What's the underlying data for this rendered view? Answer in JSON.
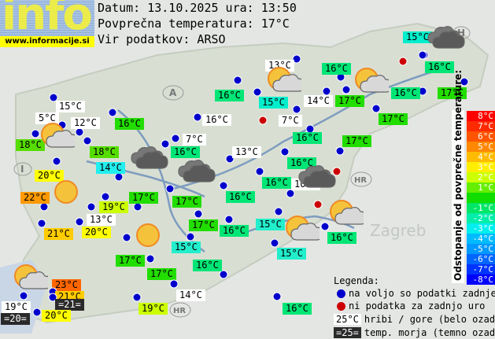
{
  "logo": {
    "text": "info",
    "url": "www.informacije.si"
  },
  "header": {
    "date_line": "Datum: 13.10.2025 ura: 13:50",
    "avg_line": "Povprečna temperatura: 17°C",
    "source_line": "Vir podatkov: ARSO"
  },
  "map_labels": [
    "A",
    "H",
    "I",
    "HR",
    "HR",
    "Zagreb"
  ],
  "stations": [
    {
      "temp": "15°C",
      "bg": "#00eecc",
      "type": "valley",
      "status": "ok"
    },
    {
      "temp": "16°C",
      "bg": "#00e676",
      "type": "valley",
      "status": "ok"
    },
    {
      "temp": "13°C",
      "bg": "#ffffff",
      "type": "mountain",
      "status": "ok"
    },
    {
      "temp": "16°C",
      "bg": "#00e676",
      "type": "valley",
      "status": "ok"
    },
    {
      "temp": "16°C",
      "bg": "#00e676",
      "type": "valley",
      "status": "ok"
    },
    {
      "temp": "17°C",
      "bg": "#22dd00",
      "type": "valley",
      "status": "ok"
    },
    {
      "temp": "16°C",
      "bg": "#00e676",
      "type": "valley",
      "status": "ok"
    },
    {
      "temp": "15°C",
      "bg": "#00eecc",
      "type": "valley",
      "status": "ok"
    },
    {
      "temp": "14°C",
      "bg": "#ffffff",
      "type": "mountain",
      "status": "ok"
    },
    {
      "temp": "17°C",
      "bg": "#22dd00",
      "type": "valley",
      "status": "ok"
    },
    {
      "temp": "17°C",
      "bg": "#22dd00",
      "type": "valley",
      "status": "ok"
    },
    {
      "temp": "7°C",
      "bg": "#ffffff",
      "type": "mountain",
      "status": "ok"
    },
    {
      "temp": "16°C",
      "bg": "#00e676",
      "type": "valley",
      "status": "ok"
    },
    {
      "temp": "17°C",
      "bg": "#22dd00",
      "type": "valley",
      "status": "ok"
    },
    {
      "temp": "13°C",
      "bg": "#ffffff",
      "type": "mountain",
      "status": "ok"
    },
    {
      "temp": "16°C",
      "bg": "#00e676",
      "type": "valley",
      "status": "ok"
    },
    {
      "temp": "16°C",
      "bg": "#00e676",
      "type": "valley",
      "status": "ok"
    },
    {
      "temp": "10°C",
      "bg": "#ffffff",
      "type": "mountain",
      "status": "ok"
    },
    {
      "temp": "15°C",
      "bg": "#ffffff",
      "type": "mountain",
      "status": "ok"
    },
    {
      "temp": "5°C",
      "bg": "#ffffff",
      "type": "mountain",
      "status": "ok"
    },
    {
      "temp": "12°C",
      "bg": "#ffffff",
      "type": "mountain",
      "status": "ok"
    },
    {
      "temp": "18°C",
      "bg": "#55dd00",
      "type": "valley",
      "status": "ok"
    },
    {
      "temp": "16°C",
      "bg": "#22dd00",
      "type": "valley",
      "status": "ok"
    },
    {
      "temp": "16°C",
      "bg": "#ffffff",
      "type": "mountain",
      "status": "ok"
    },
    {
      "temp": "7°C",
      "bg": "#ffffff",
      "type": "mountain",
      "status": "ok"
    },
    {
      "temp": "16°C",
      "bg": "#00e676",
      "type": "valley",
      "status": "ok"
    },
    {
      "temp": "18°C",
      "bg": "#55dd00",
      "type": "valley",
      "status": "ok"
    },
    {
      "temp": "14°C",
      "bg": "#22eeee",
      "type": "valley",
      "status": "ok"
    },
    {
      "temp": "20°C",
      "bg": "#ffff00",
      "type": "valley",
      "status": "ok"
    },
    {
      "temp": "22°C",
      "bg": "#ff9900",
      "type": "valley",
      "status": "ok"
    },
    {
      "temp": "19°C",
      "bg": "#ccff00",
      "type": "valley",
      "status": "ok"
    },
    {
      "temp": "17°C",
      "bg": "#22dd00",
      "type": "valley",
      "status": "ok"
    },
    {
      "temp": "17°C",
      "bg": "#22dd00",
      "type": "valley",
      "status": "ok"
    },
    {
      "temp": "16°C",
      "bg": "#00e676",
      "type": "valley",
      "status": "ok"
    },
    {
      "temp": "13°C",
      "bg": "#ffffff",
      "type": "mountain",
      "status": "ok"
    },
    {
      "temp": "20°C",
      "bg": "#ffff00",
      "type": "valley",
      "status": "ok"
    },
    {
      "temp": "21°C",
      "bg": "#ffcc00",
      "type": "valley",
      "status": "ok"
    },
    {
      "temp": "17°C",
      "bg": "#22dd00",
      "type": "valley",
      "status": "ok"
    },
    {
      "temp": "16°C",
      "bg": "#00e676",
      "type": "valley",
      "status": "ok"
    },
    {
      "temp": "15°C",
      "bg": "#22eecc",
      "type": "valley",
      "status": "ok"
    },
    {
      "temp": "15°C",
      "bg": "#22eecc",
      "type": "valley",
      "status": "ok"
    },
    {
      "temp": "16°C",
      "bg": "#00e676",
      "type": "valley",
      "status": "ok"
    },
    {
      "temp": "17°C",
      "bg": "#22dd00",
      "type": "valley",
      "status": "ok"
    },
    {
      "temp": "17°C",
      "bg": "#22dd00",
      "type": "valley",
      "status": "ok"
    },
    {
      "temp": "23°C",
      "bg": "#ff6600",
      "type": "valley",
      "status": "ok"
    },
    {
      "temp": "21°C",
      "bg": "#ffcc00",
      "type": "valley",
      "status": "ok"
    },
    {
      "temp": "=21=",
      "bg": "#2a2a2a",
      "type": "sea",
      "status": "ok"
    },
    {
      "temp": "19°C",
      "bg": "#ffffff",
      "type": "mountain",
      "status": "ok"
    },
    {
      "temp": "=20=",
      "bg": "#2a2a2a",
      "type": "sea",
      "status": "ok"
    },
    {
      "temp": "20°C",
      "bg": "#ffff00",
      "type": "valley",
      "status": "ok"
    },
    {
      "temp": "19°C",
      "bg": "#ccff00",
      "type": "valley",
      "status": "ok"
    },
    {
      "temp": "14°C",
      "bg": "#ffffff",
      "type": "mountain",
      "status": "ok"
    },
    {
      "temp": "16°C",
      "bg": "#00e676",
      "type": "valley",
      "status": "ok"
    },
    {
      "temp": "16°C",
      "bg": "#00e676",
      "type": "valley",
      "status": "ok"
    },
    {
      "temp": "15°C",
      "bg": "#22eecc",
      "type": "valley",
      "status": "ok"
    },
    {
      "temp": "",
      "status": "no-data"
    },
    {
      "temp": "",
      "status": "no-data"
    },
    {
      "temp": "",
      "status": "no-data"
    },
    {
      "temp": "",
      "status": "no-data"
    },
    {
      "temp": "",
      "status": "no-data"
    }
  ],
  "weather_icons": [
    "cloud",
    "sun-cloud",
    "sun-cloud",
    "sun-cloud",
    "cloud",
    "cloud",
    "sun",
    "sun",
    "sun-cloud",
    "sun-cloud",
    "sun-cloud",
    "cloud"
  ],
  "scale": {
    "title": "Odstopanje od povprečne temperature:",
    "rows": [
      {
        "label": "8°C",
        "color": "#ff0000"
      },
      {
        "label": "7°C",
        "color": "#ff2a00"
      },
      {
        "label": "6°C",
        "color": "#ff5500"
      },
      {
        "label": "5°C",
        "color": "#ff8800"
      },
      {
        "label": "4°C",
        "color": "#ffbb00"
      },
      {
        "label": "3°C",
        "color": "#ffee00"
      },
      {
        "label": "2°C",
        "color": "#ccff00"
      },
      {
        "label": "1°C",
        "color": "#66ee00"
      },
      {
        "label": "",
        "color": "#11dd00"
      },
      {
        "label": "-1°C",
        "color": "#00e666"
      },
      {
        "label": "-2°C",
        "color": "#00eeaa"
      },
      {
        "label": "-3°C",
        "color": "#00eeee"
      },
      {
        "label": "-4°C",
        "color": "#00bbff"
      },
      {
        "label": "-5°C",
        "color": "#0099ff"
      },
      {
        "label": "-6°C",
        "color": "#0066ff"
      },
      {
        "label": "-7°C",
        "color": "#0033ff"
      },
      {
        "label": "-8°C",
        "color": "#0000ff"
      }
    ]
  },
  "legend": {
    "title": "Legenda:",
    "available": "na voljo so podatki zadnje ure",
    "no_data": "ni podatka za zadnjo uro",
    "mountain_sample": "25°C",
    "mountain_text": "hribi / gore (belo ozadje)",
    "sea_sample": "=25=",
    "sea_text": "temp. morja (temno ozadje)",
    "colors": {
      "available": "#0000cc",
      "no_data": "#cc0000"
    }
  }
}
